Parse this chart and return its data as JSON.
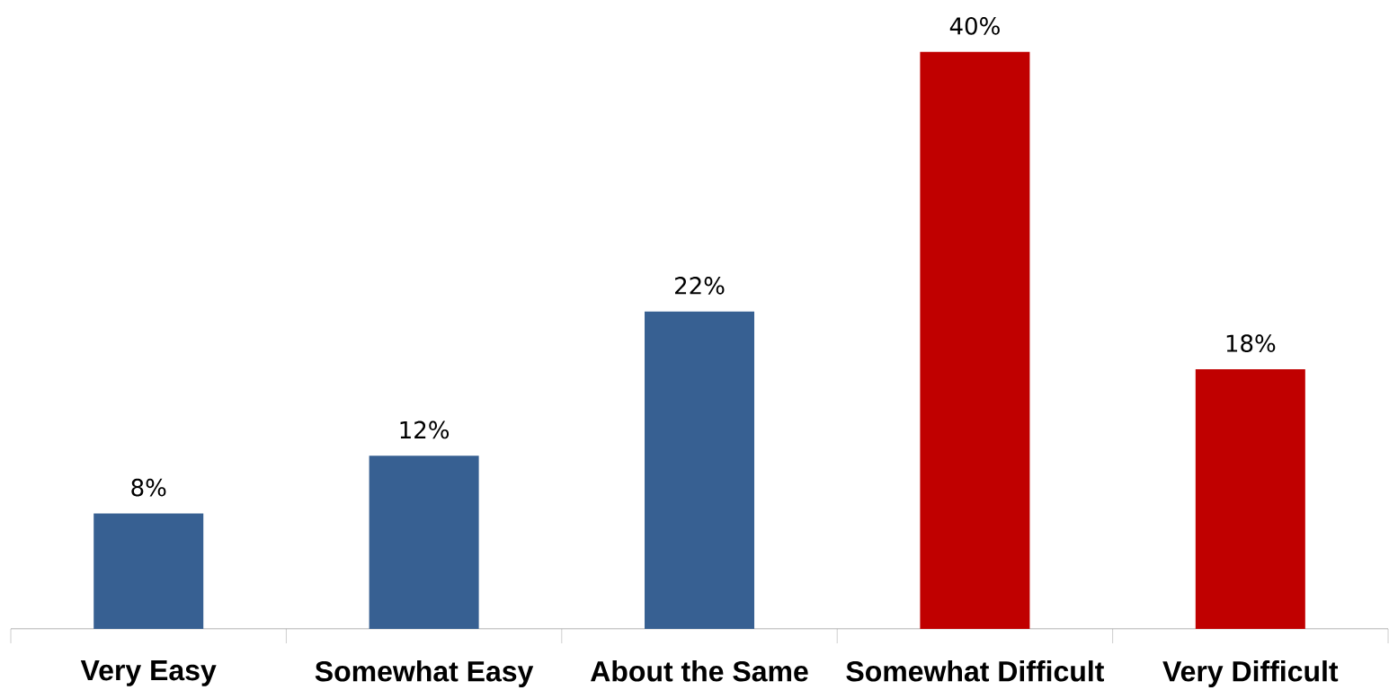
{
  "chart_data": {
    "type": "bar",
    "categories": [
      "Very Easy",
      "Somewhat Easy",
      "About the Same",
      "Somewhat Difficult",
      "Very Difficult"
    ],
    "values": [
      8,
      12,
      22,
      40,
      18
    ],
    "colors": [
      "#376092",
      "#376092",
      "#376092",
      "#c00000",
      "#c00000"
    ],
    "value_labels": [
      "8%",
      "12%",
      "22%",
      "40%",
      "18%"
    ]
  }
}
